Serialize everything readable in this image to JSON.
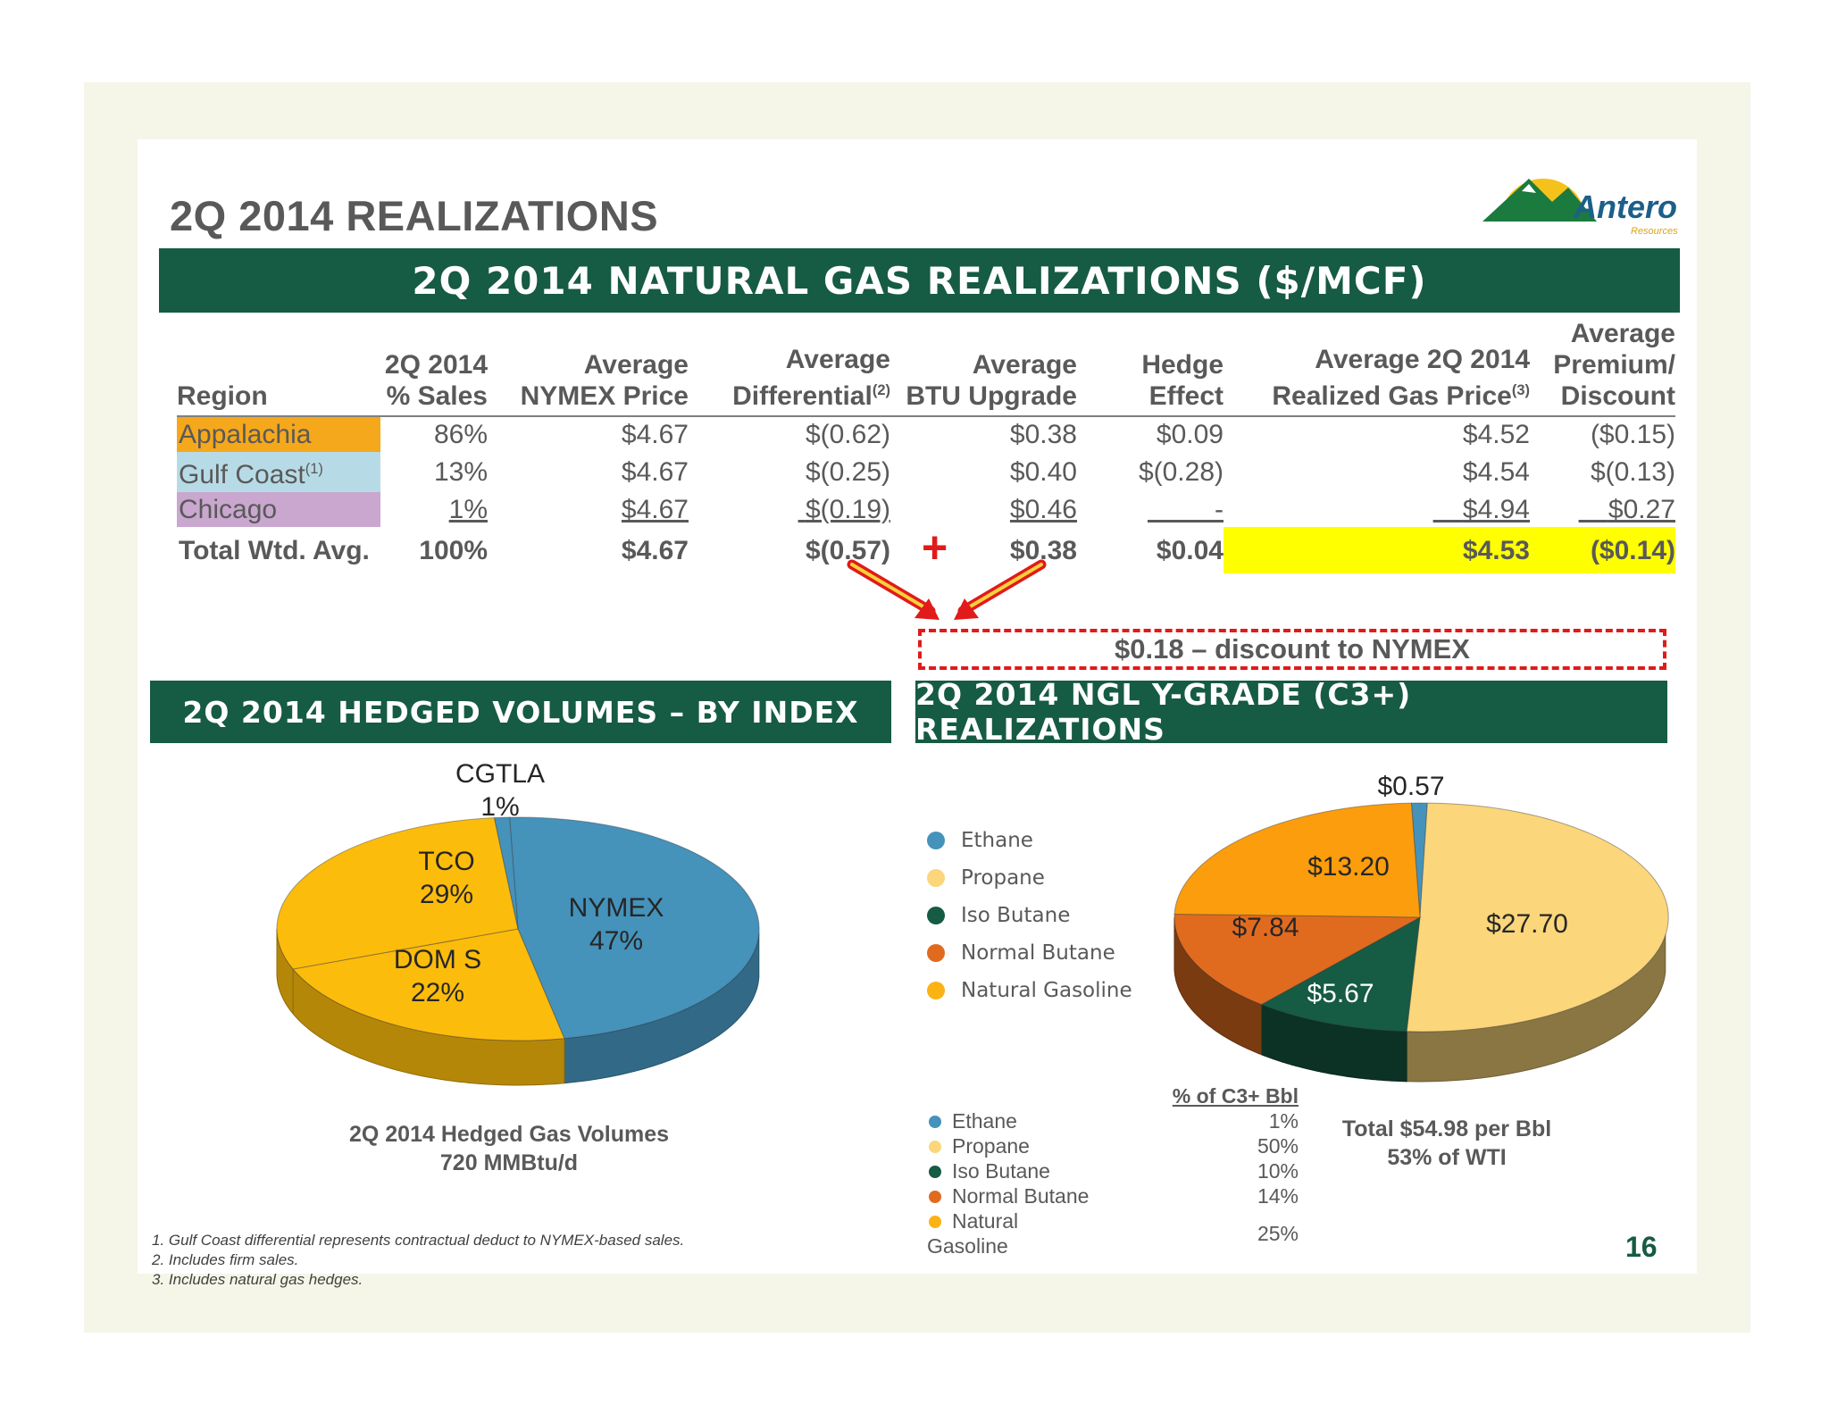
{
  "title": "2Q 2014 REALIZATIONS",
  "logo": {
    "name": "Antero",
    "sub": "Resources"
  },
  "gas_section": {
    "band": "2Q 2014 NATURAL GAS REALIZATIONS ($/MCF)",
    "headers": [
      {
        "line1": "",
        "line2": "Region"
      },
      {
        "line1": "2Q 2014",
        "line2": "% Sales"
      },
      {
        "line1": "Average",
        "line2": "NYMEX Price"
      },
      {
        "line1": "Average",
        "line2": "Differential",
        "note": "(2)"
      },
      {
        "line1": "Average",
        "line2": "BTU Upgrade"
      },
      {
        "line1": "Hedge",
        "line2": "Effect"
      },
      {
        "line1": "Average 2Q 2014",
        "line2": "Realized Gas Price",
        "note": "(3)"
      },
      {
        "line0": "Average",
        "line1": "Premium/",
        "line2": "Discount"
      }
    ],
    "rows": [
      {
        "region": "Appalachia",
        "note": "",
        "sales": "86%",
        "nymex": "$4.67",
        "diff": "$(0.62)",
        "btu": "$0.38",
        "hedge": "$0.09",
        "realized": "$4.52",
        "premium": "($0.15)"
      },
      {
        "region": "Gulf Coast",
        "note": "(1)",
        "sales": "13%",
        "nymex": "$4.67",
        "diff": "$(0.25)",
        "btu": "$0.40",
        "hedge": "$(0.28)",
        "realized": "$4.54",
        "premium": "$(0.13)"
      },
      {
        "region": "Chicago",
        "note": "",
        "sales": "1%",
        "nymex": "$4.67",
        "diff": "$(0.19)",
        "btu": "$0.46",
        "hedge": "-",
        "realized": "$4.94",
        "premium": "$0.27"
      }
    ],
    "total": {
      "region": "Total Wtd. Avg.",
      "sales": "100%",
      "nymex": "$4.67",
      "diff": "$(0.57)",
      "btu": "$0.38",
      "hedge": "$0.04",
      "realized": "$4.53",
      "premium": "($0.14)"
    },
    "plus_sign": "+",
    "discount_note": "$0.18 – discount to NYMEX",
    "region_colors": {
      "Appalachia": "#f5a81c",
      "Gulf Coast": "#b7dbe6",
      "Chicago": "#c9a7cf"
    },
    "highlight_color": "#ffff00"
  },
  "hedged_section": {
    "band": "2Q 2014 HEDGED VOLUMES – BY INDEX",
    "slices": [
      {
        "name": "NYMEX",
        "pct": "47%",
        "value": 47,
        "color": "#4592bb"
      },
      {
        "name": "DOM S",
        "pct": "22%",
        "value": 22,
        "color": "#fcbc0c"
      },
      {
        "name": "TCO",
        "pct": "29%",
        "value": 29,
        "color": "#fcbc0c"
      },
      {
        "name": "CGTLA",
        "pct": "1%",
        "value": 1,
        "color": "#4592bb"
      }
    ],
    "caption1": "2Q 2014 Hedged Gas Volumes",
    "caption2": "720 MMBtu/d"
  },
  "ngl_section": {
    "band": "2Q 2014 NGL Y-GRADE (C3+) REALIZATIONS",
    "legend": [
      {
        "name": "Ethane",
        "color": "#4592bb"
      },
      {
        "name": "Propane",
        "color": "#fbd67a"
      },
      {
        "name": "Iso Butane",
        "color": "#165b43"
      },
      {
        "name": "Normal Butane",
        "color": "#e06b1f"
      },
      {
        "name": "Natural Gasoline",
        "color": "#fbb214"
      }
    ],
    "slices": [
      {
        "name": "Ethane",
        "label": "$0.57",
        "value": 0.57,
        "color": "#4592bb"
      },
      {
        "name": "Propane",
        "label": "$27.70",
        "value": 27.7,
        "color": "#fbd67a"
      },
      {
        "name": "Iso Butane",
        "label": "$5.67",
        "value": 5.67,
        "color": "#165b43"
      },
      {
        "name": "Normal Butane",
        "label": "$7.84",
        "value": 7.84,
        "color": "#e06b1f"
      },
      {
        "name": "Natural Gasoline",
        "label": "$13.20",
        "value": 13.2,
        "color": "#fb9d0c"
      }
    ],
    "table_header": "% of C3+ Bbl",
    "table": [
      {
        "name": "Ethane",
        "pct": "1%",
        "color": "#4592bb"
      },
      {
        "name": "Propane",
        "pct": "50%",
        "color": "#fbd67a"
      },
      {
        "name": "Iso Butane",
        "pct": "10%",
        "color": "#165b43"
      },
      {
        "name": "Normal Butane",
        "pct": "14%",
        "color": "#e06b1f"
      },
      {
        "name": "Natural Gasoline",
        "pct": "25%",
        "color": "#fbb214"
      }
    ],
    "total1": "Total $54.98 per Bbl",
    "total2": "53% of WTI"
  },
  "footnotes": [
    "1.  Gulf Coast differential represents contractual deduct to NYMEX-based sales.",
    "2.  Includes firm sales.",
    "3.  Includes natural gas hedges."
  ],
  "page_number": "16"
}
